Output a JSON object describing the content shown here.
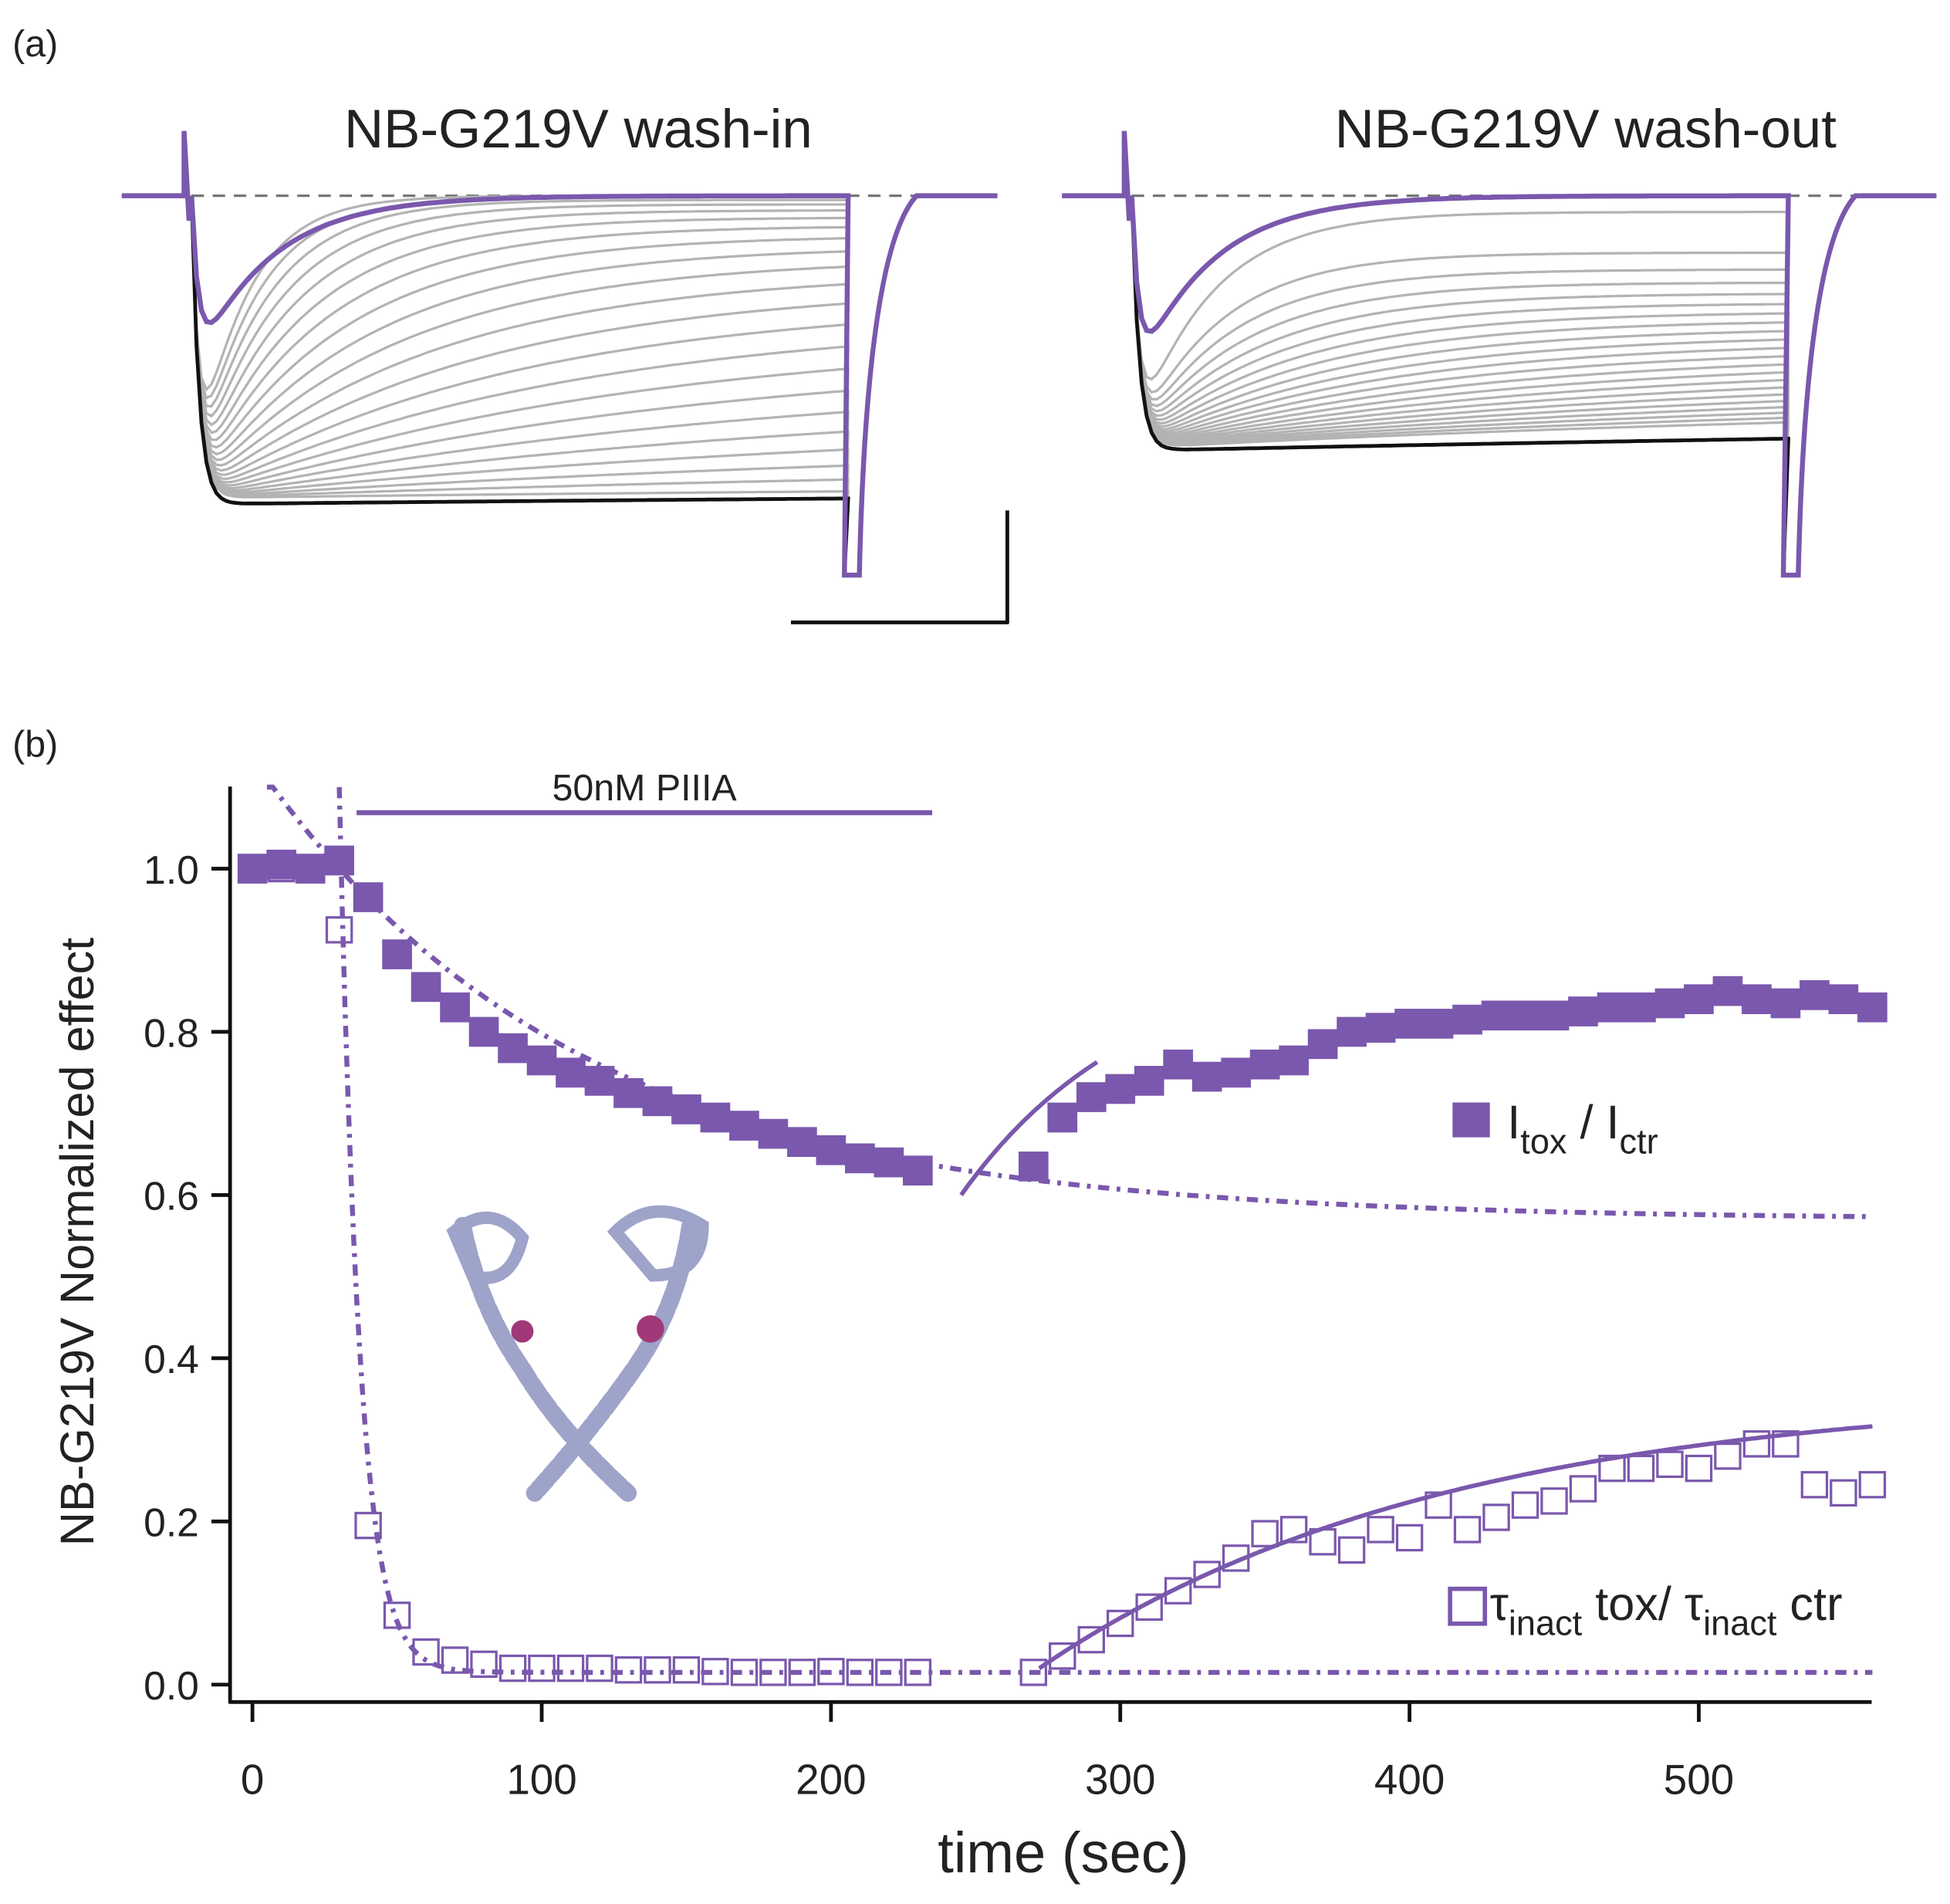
{
  "panel_a": {
    "label": "(a)",
    "left_title": "NB-G219V wash-in",
    "right_title": "NB-G219V wash-out"
  },
  "panel_b": {
    "label": "(b)",
    "bar_label": "50nM PIIIA"
  },
  "colors": {
    "purple": "#7a58ad",
    "gray": "#aaaaaa",
    "black": "#111111",
    "protein": "#9ea3c9"
  },
  "chart_data": {
    "type": "scatter",
    "xlabel": "time (sec)",
    "ylabel": "NB-G219V Normalized effect",
    "xlim": [
      -8,
      565
    ],
    "ylim": [
      -0.02,
      1.1
    ],
    "xticks": [
      "0",
      "100",
      "200",
      "300",
      "400",
      "500"
    ],
    "xtick_values": [
      0,
      100,
      200,
      300,
      400,
      500
    ],
    "yticks": [
      "0.0",
      "0.2",
      "0.4",
      "0.6",
      "0.8",
      "1.0"
    ],
    "ytick_values": [
      0,
      0.2,
      0.4,
      0.6,
      0.8,
      1.0
    ],
    "toxin_application": {
      "label": "50nM PIIIA",
      "start": 36,
      "end": 235
    },
    "legend": {
      "placement": "right",
      "filled": {
        "main": "I",
        "sub1": "tox",
        "mid": " / I",
        "sub2": "ctr"
      },
      "open": {
        "p1": "τ",
        "s1": "inact",
        "p2": " tox/ τ",
        "s2": "inact",
        "p3": " ctr"
      }
    },
    "series": [
      {
        "name": "Itox / Ictr",
        "marker": "filled-square",
        "x": [
          0,
          10,
          20,
          30,
          40,
          50,
          60,
          70,
          80,
          90,
          100,
          110,
          120,
          130,
          140,
          150,
          160,
          170,
          180,
          190,
          200,
          210,
          220,
          230,
          270,
          280,
          290,
          300,
          310,
          320,
          330,
          340,
          350,
          360,
          370,
          380,
          390,
          400,
          410,
          420,
          430,
          440,
          450,
          460,
          470,
          480,
          490,
          500,
          510,
          520,
          530,
          540,
          550,
          560
        ],
        "y": [
          1.0,
          1.005,
          1.0,
          1.01,
          0.965,
          0.895,
          0.855,
          0.83,
          0.8,
          0.78,
          0.765,
          0.75,
          0.74,
          0.725,
          0.715,
          0.705,
          0.695,
          0.685,
          0.675,
          0.665,
          0.655,
          0.645,
          0.64,
          0.63,
          0.635,
          0.695,
          0.72,
          0.73,
          0.74,
          0.76,
          0.745,
          0.75,
          0.76,
          0.765,
          0.785,
          0.8,
          0.805,
          0.81,
          0.81,
          0.815,
          0.82,
          0.82,
          0.82,
          0.825,
          0.83,
          0.83,
          0.835,
          0.84,
          0.85,
          0.84,
          0.835,
          0.845,
          0.84,
          0.83
        ]
      },
      {
        "name": "τinact tox / τinact ctr",
        "marker": "open-square",
        "x": [
          0,
          10,
          20,
          30,
          40,
          50,
          60,
          70,
          80,
          90,
          100,
          110,
          120,
          130,
          140,
          150,
          160,
          170,
          180,
          190,
          200,
          210,
          220,
          230,
          270,
          280,
          290,
          300,
          310,
          320,
          330,
          340,
          350,
          360,
          370,
          380,
          390,
          400,
          410,
          420,
          430,
          440,
          450,
          460,
          470,
          480,
          490,
          500,
          510,
          520,
          530,
          540,
          550,
          560
        ],
        "y": [
          1.0,
          1.0,
          1.0,
          0.925,
          0.195,
          0.085,
          0.04,
          0.03,
          0.025,
          0.02,
          0.02,
          0.02,
          0.02,
          0.018,
          0.018,
          0.018,
          0.016,
          0.015,
          0.015,
          0.015,
          0.016,
          0.015,
          0.015,
          0.015,
          0.015,
          0.035,
          0.055,
          0.075,
          0.095,
          0.115,
          0.135,
          0.155,
          0.185,
          0.19,
          0.175,
          0.165,
          0.19,
          0.18,
          0.22,
          0.19,
          0.205,
          0.22,
          0.225,
          0.24,
          0.265,
          0.265,
          0.27,
          0.265,
          0.28,
          0.295,
          0.295,
          0.245,
          0.235,
          0.245
        ]
      }
    ],
    "fits": [
      {
        "name": "Itox wash-in fit",
        "style": "dash-dot",
        "x0": 5,
        "x1": 560,
        "offset": 0.57,
        "amp": 0.54,
        "tau": 110
      },
      {
        "name": "tau wash-in fit",
        "style": "dash-dot",
        "x0": 30,
        "x1": 560,
        "offset": 0.015,
        "amp": 1.085,
        "tau": 7
      },
      {
        "name": "Itox wash-out fit",
        "style": "solid",
        "x0": 245,
        "x1": 292,
        "start": 0.6,
        "amp": 0.3,
        "tau": 60
      },
      {
        "name": "tau wash-out fit",
        "style": "solid",
        "x0": 272,
        "x1": 560,
        "start": 0.02,
        "amp": 0.34,
        "tau": 140
      }
    ]
  }
}
